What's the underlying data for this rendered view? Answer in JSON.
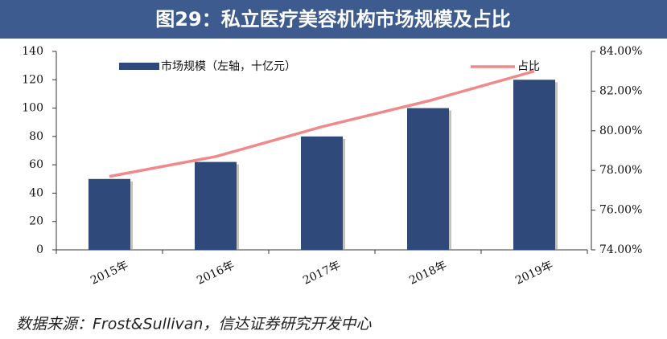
{
  "chart_data": {
    "type": "combo",
    "title": "图29：私立医疗美容机构市场规模及占比",
    "source": "数据来源：Frost&Sullivan，信达证券研究开发中心",
    "categories": [
      "2015年",
      "2016年",
      "2017年",
      "2018年",
      "2019年"
    ],
    "series": [
      {
        "name": "市场规模（左轴，十亿元）",
        "type": "bar",
        "color": "#2f4a7a",
        "values": [
          50,
          62,
          80,
          100,
          120
        ]
      },
      {
        "name": "占比",
        "type": "line",
        "axis": "y2",
        "color": "#f08a8a",
        "values": [
          77.7,
          78.7,
          80.2,
          81.5,
          83.0
        ]
      }
    ],
    "ylim": [
      0,
      140
    ],
    "yticks": [
      0,
      20,
      40,
      60,
      80,
      100,
      120,
      140
    ],
    "y2lim": [
      74,
      84
    ],
    "y2ticks": [
      {
        "value": 74,
        "label": "74.00%"
      },
      {
        "value": 76,
        "label": "76.00%"
      },
      {
        "value": 78,
        "label": "78.00%"
      },
      {
        "value": 80,
        "label": "80.00%"
      },
      {
        "value": 82,
        "label": "82.00%"
      },
      {
        "value": 84,
        "label": "84.00%"
      }
    ],
    "grid": false
  }
}
